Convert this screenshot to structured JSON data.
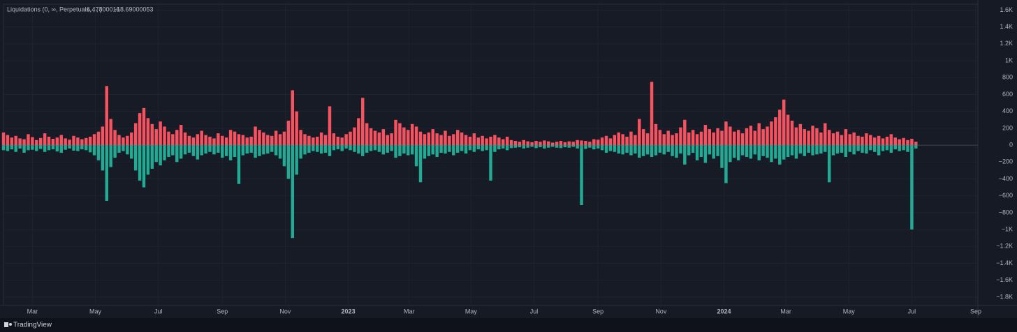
{
  "chart_data": {
    "type": "bar",
    "legend_title": "Liquidations (0, ∞, Perpetuals, , , )",
    "legend_values": [
      6.47800016,
      -18.69000053
    ],
    "branding": "TradingView",
    "grid": true,
    "x": [
      0,
      4,
      8,
      12,
      16,
      20,
      24,
      28,
      32,
      36,
      40,
      44,
      48,
      52,
      56,
      60,
      64,
      68,
      72,
      76,
      80,
      84,
      88,
      92,
      96,
      100,
      104,
      108,
      112,
      116,
      120,
      124,
      128,
      132,
      136,
      140,
      144,
      148,
      152,
      156,
      160,
      164,
      168,
      172,
      176,
      180,
      184,
      188,
      192,
      196,
      200,
      204,
      208,
      212,
      216,
      220,
      224,
      228,
      232,
      236,
      240,
      244,
      248,
      252,
      256,
      260,
      264,
      268,
      272,
      276,
      280,
      284,
      288,
      292,
      296,
      300,
      304,
      308,
      312,
      316,
      320,
      324,
      328,
      332,
      336,
      340,
      344,
      348,
      352,
      356,
      360,
      364,
      368,
      372,
      376,
      380,
      384,
      388,
      392,
      396,
      400,
      404,
      408,
      412,
      416,
      420,
      424,
      428,
      432,
      436,
      440,
      444,
      448,
      452,
      456,
      460,
      464,
      468,
      472,
      476,
      480,
      484,
      488,
      492,
      496,
      500,
      504,
      508,
      512,
      516,
      520,
      524,
      528,
      532,
      536,
      540,
      544,
      548,
      552,
      556,
      560,
      564,
      568,
      572,
      576,
      580,
      584,
      588,
      592,
      596,
      600,
      604,
      608,
      612,
      616,
      620,
      624,
      628,
      632,
      636,
      640,
      644,
      648,
      652,
      656,
      660,
      664,
      668,
      672,
      676,
      680,
      684,
      688,
      692,
      696,
      700,
      704,
      708,
      712,
      716,
      720,
      724,
      728,
      732,
      736,
      740,
      744,
      748,
      752,
      756,
      760,
      764,
      768,
      772,
      776,
      780,
      784,
      788,
      792,
      796,
      800,
      804,
      808,
      812,
      816,
      820,
      824,
      828,
      832,
      836,
      840,
      844,
      848,
      852,
      856,
      860,
      864,
      868,
      872,
      876,
      880,
      884
    ],
    "series": [
      {
        "color": "#f7525f",
        "values": [
          150,
          120,
          90,
          110,
          80,
          70,
          130,
          95,
          60,
          85,
          140,
          100,
          75,
          90,
          120,
          80,
          65,
          110,
          90,
          70,
          85,
          100,
          130,
          160,
          220,
          700,
          310,
          180,
          120,
          90,
          110,
          150,
          260,
          380,
          440,
          320,
          250,
          190,
          280,
          220,
          160,
          130,
          180,
          240,
          150,
          110,
          90,
          130,
          170,
          120,
          100,
          80,
          140,
          110,
          90,
          180,
          160,
          130,
          120,
          90,
          100,
          220,
          180,
          150,
          120,
          110,
          170,
          130,
          160,
          290,
          650,
          400,
          180,
          130,
          110,
          90,
          100,
          150,
          120,
          460,
          140,
          100,
          90,
          130,
          160,
          210,
          320,
          560,
          260,
          200,
          170,
          150,
          190,
          120,
          140,
          300,
          260,
          210,
          180,
          250,
          220,
          160,
          130,
          150,
          190,
          140,
          120,
          170,
          110,
          130,
          180,
          150,
          120,
          100,
          140,
          90,
          110,
          80,
          100,
          120,
          90,
          70,
          100,
          60,
          50,
          40,
          60,
          45,
          35,
          50,
          40,
          55,
          45,
          30,
          40,
          50,
          35,
          45,
          40,
          60,
          55,
          50,
          40,
          70,
          65,
          90,
          110,
          80,
          120,
          150,
          130,
          100,
          160,
          120,
          310,
          190,
          140,
          750,
          250,
          180,
          130,
          170,
          120,
          140,
          210,
          300,
          150,
          180,
          130,
          160,
          240,
          190,
          150,
          200,
          170,
          280,
          220,
          160,
          180,
          140,
          200,
          230,
          170,
          260,
          190,
          220,
          280,
          330,
          420,
          540,
          360,
          290,
          210,
          250,
          190,
          170,
          230,
          200,
          150,
          260,
          180,
          140,
          160,
          120,
          190,
          130,
          150,
          110,
          100,
          140,
          120,
          90,
          110,
          80,
          100,
          130,
          90,
          70,
          85,
          60,
          75,
          40
        ]
      },
      {
        "color": "#22ab94",
        "values": [
          -60,
          -70,
          -50,
          -80,
          -40,
          -90,
          -60,
          -55,
          -70,
          -45,
          -80,
          -60,
          -50,
          -75,
          -90,
          -55,
          -40,
          -65,
          -70,
          -50,
          -60,
          -85,
          -120,
          -180,
          -300,
          -660,
          -260,
          -150,
          -90,
          -70,
          -110,
          -160,
          -300,
          -420,
          -500,
          -350,
          -280,
          -200,
          -240,
          -180,
          -140,
          -120,
          -200,
          -160,
          -110,
          -90,
          -130,
          -170,
          -120,
          -100,
          -80,
          -110,
          -90,
          -150,
          -130,
          -180,
          -140,
          -460,
          -120,
          -100,
          -90,
          -150,
          -130,
          -110,
          -100,
          -80,
          -120,
          -160,
          -250,
          -400,
          -1100,
          -350,
          -160,
          -110,
          -90,
          -70,
          -80,
          -100,
          -90,
          -130,
          -60,
          -50,
          -70,
          -40,
          -60,
          -80,
          -100,
          -130,
          -90,
          -70,
          -60,
          -80,
          -110,
          -90,
          -70,
          -150,
          -130,
          -100,
          -120,
          -110,
          -250,
          -440,
          -160,
          -130,
          -110,
          -140,
          -90,
          -100,
          -80,
          -120,
          -90,
          -70,
          -100,
          -60,
          -80,
          -50,
          -70,
          -60,
          -420,
          -80,
          -50,
          -40,
          -60,
          -35,
          -30,
          -25,
          -40,
          -30,
          -20,
          -35,
          -25,
          -40,
          -30,
          -20,
          -30,
          -35,
          -25,
          -30,
          -20,
          -40,
          -710,
          -45,
          -30,
          -50,
          -40,
          -60,
          -90,
          -70,
          -80,
          -100,
          -110,
          -90,
          -120,
          -100,
          -150,
          -130,
          -110,
          -140,
          -120,
          -90,
          -110,
          -80,
          -130,
          -150,
          -100,
          -230,
          -120,
          -90,
          -180,
          -140,
          -210,
          -110,
          -160,
          -130,
          -270,
          -450,
          -200,
          -150,
          -180,
          -120,
          -140,
          -160,
          -110,
          -180,
          -130,
          -150,
          -200,
          -160,
          -230,
          -170,
          -140,
          -120,
          -160,
          -100,
          -130,
          -90,
          -120,
          -110,
          -100,
          -80,
          -440,
          -120,
          -100,
          -90,
          -140,
          -80,
          -110,
          -70,
          -90,
          -100,
          -60,
          -80,
          -120,
          -70,
          -60,
          -90,
          -50,
          -70,
          -60,
          -80,
          -1000,
          -40
        ]
      }
    ],
    "xlim": [
      0,
      944
    ],
    "xticks": [
      {
        "value": 28,
        "label": "Mar"
      },
      {
        "value": 89,
        "label": "May"
      },
      {
        "value": 150,
        "label": "Jul"
      },
      {
        "value": 212,
        "label": "Sep"
      },
      {
        "value": 273,
        "label": "Nov"
      },
      {
        "value": 334,
        "label": "2023"
      },
      {
        "value": 393,
        "label": "Mar"
      },
      {
        "value": 453,
        "label": "May"
      },
      {
        "value": 514,
        "label": "Jul"
      },
      {
        "value": 576,
        "label": "Sep"
      },
      {
        "value": 637,
        "label": "Nov"
      },
      {
        "value": 698,
        "label": "2024"
      },
      {
        "value": 758,
        "label": "Mar"
      },
      {
        "value": 819,
        "label": "May"
      },
      {
        "value": 880,
        "label": "Jul"
      },
      {
        "value": 942,
        "label": "Sep"
      }
    ],
    "ylim": [
      -1900,
      1670
    ],
    "yticks": [
      {
        "value": 1600,
        "label": "1.6K"
      },
      {
        "value": 1400,
        "label": "1.4K"
      },
      {
        "value": 1200,
        "label": "1.2K"
      },
      {
        "value": 1000,
        "label": "1K"
      },
      800,
      600,
      400,
      200,
      0,
      {
        "value": -200,
        "label": "−200"
      },
      {
        "value": -400,
        "label": "−400"
      },
      {
        "value": -600,
        "label": "−600"
      },
      {
        "value": -800,
        "label": "−800"
      },
      {
        "value": -1000,
        "label": "−1K"
      },
      {
        "value": -1200,
        "label": "−1.2K"
      },
      {
        "value": -1400,
        "label": "−1.4K"
      },
      {
        "value": -1600,
        "label": "−1.6K"
      },
      {
        "value": -1800,
        "label": "−1.8K"
      }
    ]
  }
}
